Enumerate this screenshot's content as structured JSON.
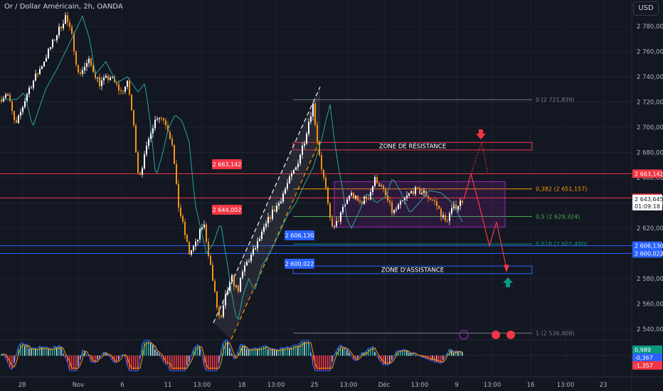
{
  "header": {
    "symbol_title": "Or / Dollar Américain, 2h, OANDA",
    "currency_button": "USD"
  },
  "chart_data": {
    "type": "candlestick",
    "title": "Or / Dollar Américain, 2h, OANDA",
    "y_axis": {
      "ticks": [
        2540,
        2560,
        2580,
        2600,
        2620,
        2640,
        2660,
        2680,
        2700,
        2720,
        2740,
        2760,
        2780
      ],
      "tick_labels": [
        "2 540,000",
        "2 560,000",
        "2 580,000",
        "2 600,000",
        "2 620,000",
        "2 640,000",
        "2 660,000",
        "2 680,000",
        "2 700,000",
        "2 720,000",
        "2 740,000",
        "2 760,000",
        "2 780,000"
      ],
      "range": [
        2531,
        2805
      ]
    },
    "x_axis": {
      "tick_labels": [
        "28",
        "Nov",
        "6",
        "11",
        "13:00",
        "18",
        "13:00",
        "25",
        "13:00",
        "Déc",
        "13:00",
        "9",
        "13:00",
        "16",
        "13:00",
        "23"
      ]
    },
    "price_path": [
      [
        0,
        2722
      ],
      [
        10,
        2728
      ],
      [
        22,
        2700
      ],
      [
        40,
        2730
      ],
      [
        55,
        2745
      ],
      [
        75,
        2768
      ],
      [
        92,
        2788
      ],
      [
        102,
        2770
      ],
      [
        110,
        2742
      ],
      [
        125,
        2752
      ],
      [
        140,
        2735
      ],
      [
        155,
        2740
      ],
      [
        170,
        2728
      ],
      [
        180,
        2735
      ],
      [
        188,
        2700
      ],
      [
        195,
        2660
      ],
      [
        205,
        2680
      ],
      [
        212,
        2698
      ],
      [
        222,
        2710
      ],
      [
        232,
        2705
      ],
      [
        242,
        2688
      ],
      [
        250,
        2640
      ],
      [
        258,
        2620
      ],
      [
        266,
        2600
      ],
      [
        276,
        2608
      ],
      [
        286,
        2625
      ],
      [
        296,
        2590
      ],
      [
        304,
        2560
      ],
      [
        310,
        2545
      ],
      [
        318,
        2568
      ],
      [
        326,
        2580
      ],
      [
        334,
        2570
      ],
      [
        344,
        2590
      ],
      [
        355,
        2600
      ],
      [
        368,
        2615
      ],
      [
        380,
        2630
      ],
      [
        392,
        2640
      ],
      [
        404,
        2655
      ],
      [
        416,
        2668
      ],
      [
        428,
        2690
      ],
      [
        434,
        2705
      ],
      [
        440,
        2718
      ],
      [
        446,
        2690
      ],
      [
        452,
        2668
      ],
      [
        458,
        2650
      ],
      [
        463,
        2628
      ],
      [
        470,
        2620
      ],
      [
        480,
        2632
      ],
      [
        492,
        2648
      ],
      [
        505,
        2640
      ],
      [
        518,
        2645
      ],
      [
        528,
        2660
      ],
      [
        540,
        2648
      ],
      [
        552,
        2632
      ],
      [
        565,
        2640
      ],
      [
        580,
        2650
      ],
      [
        596,
        2648
      ],
      [
        612,
        2640
      ],
      [
        626,
        2625
      ],
      [
        636,
        2635
      ],
      [
        646,
        2640
      ],
      [
        651,
        2643
      ]
    ],
    "moving_average_offset": 8,
    "horizontal_levels": [
      {
        "price": 2663.142,
        "label": "2 663,142",
        "color": "#f23645"
      },
      {
        "price": 2644.002,
        "label": "2 644,002",
        "color": "#f23645"
      },
      {
        "price": 2606.13,
        "label": "2 606,130",
        "color": "#2962ff"
      },
      {
        "price": 2600.022,
        "label": "2 600,022",
        "color": "#2962ff"
      }
    ],
    "current_price": {
      "price": 2643.645,
      "label": "2 643,645",
      "countdown": "01:09:18"
    },
    "chart_price_labels": [
      {
        "text": "2 663,142",
        "price": 2663.142,
        "color": "#f23645"
      },
      {
        "text": "2 644,002",
        "price": 2644.002,
        "color": "#f23645"
      },
      {
        "text": "2 606,130",
        "price": 2606.13,
        "color": "#2962ff"
      },
      {
        "text": "2 600,022",
        "price": 2600.022,
        "color": "#2962ff"
      }
    ],
    "fibonacci": [
      {
        "ratio": "0",
        "price": 2721.839,
        "label": "0 (2 721,839)",
        "color": "#787b86"
      },
      {
        "ratio": "0.382",
        "price": 2651.157,
        "label": "0,382 (2 651,157)",
        "color": "#ff9800"
      },
      {
        "ratio": "0.5",
        "price": 2629.324,
        "label": "0,5 (2 629,324)",
        "color": "#4caf50"
      },
      {
        "ratio": "0.618",
        "price": 2607.49,
        "label": "0,618 (2 607,490)",
        "color": "#089981"
      },
      {
        "ratio": "1",
        "price": 2536.808,
        "label": "1 (2 536,808)",
        "color": "#787b86"
      }
    ],
    "zones": [
      {
        "label": "ZONE DE RÉSISTANCE",
        "price_top": 2688,
        "price_bottom": 2682,
        "color": "#f23645"
      },
      {
        "label": "ZONE D'ASSISTANCE",
        "price_top": 2590,
        "price_bottom": 2584,
        "color": "#2962ff"
      },
      {
        "label": "",
        "price_top": 2657,
        "price_bottom": 2621,
        "color": "#9c27b0"
      }
    ],
    "oscillator": {
      "values": [
        {
          "label": "0,989",
          "color": "#089981"
        },
        {
          "label": "-0,367",
          "color": "#2962ff"
        },
        {
          "label": "-1,357",
          "color": "#f23645"
        }
      ]
    },
    "colors": {
      "background": "#131722",
      "candle_up": "#ffffff",
      "candle_down": "#f7931a",
      "moving_average": "#26a69a",
      "grid": "#1e222d"
    }
  }
}
